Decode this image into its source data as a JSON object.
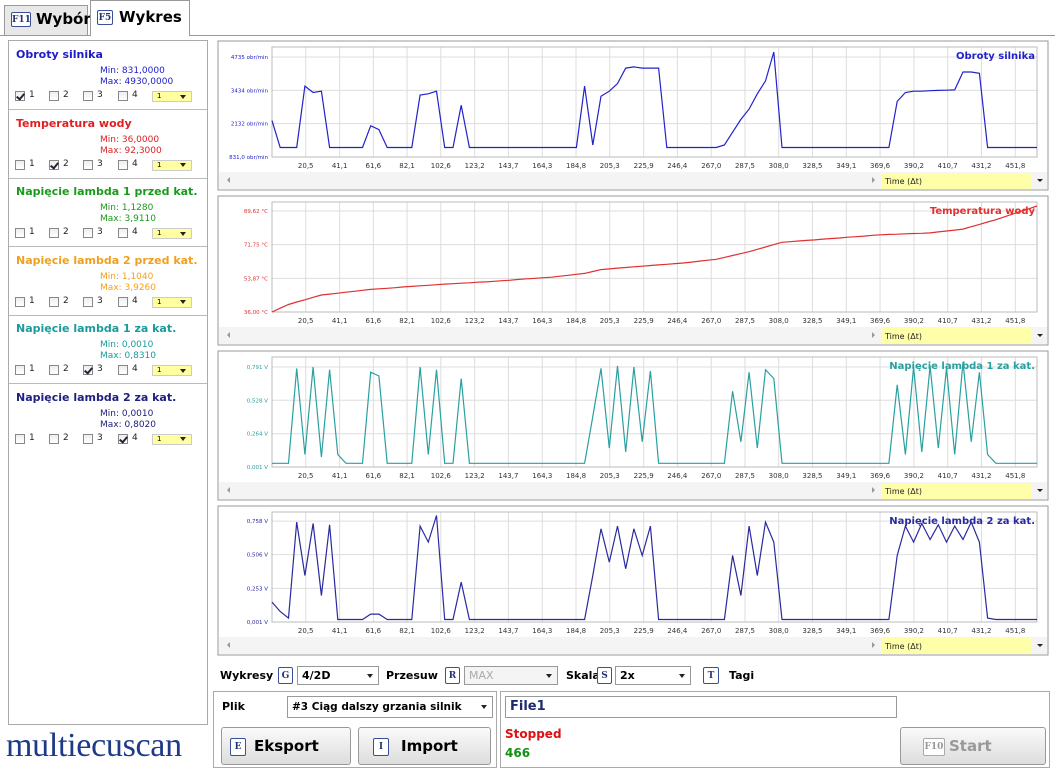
{
  "tabs": [
    {
      "key": "F11",
      "label": "Wybór",
      "active": false
    },
    {
      "key": "F5",
      "label": "Wykres",
      "active": true
    }
  ],
  "checkbox_labels": [
    "1",
    "2",
    "3",
    "4"
  ],
  "signals": [
    {
      "name": "Obroty silnika",
      "color": "#1c1cc8",
      "min": "Min: 831,0000",
      "max": "Max: 4930,0000",
      "checked": [
        true,
        false,
        false,
        false
      ],
      "selector": "1"
    },
    {
      "name": "Temperatura wody",
      "color": "#e02020",
      "min": "Min: 36,0000",
      "max": "Max: 92,3000",
      "checked": [
        false,
        true,
        false,
        false
      ],
      "selector": "1"
    },
    {
      "name": "Napięcie lambda 1 przed kat.",
      "color": "#1a9a1a",
      "min": "Min: 1,1280",
      "max": "Max: 3,9110",
      "checked": [
        false,
        false,
        false,
        false
      ],
      "selector": "1"
    },
    {
      "name": "Napięcie lambda 2 przed kat.",
      "color": "#f0a020",
      "min": "Min: 1,1040",
      "max": "Max: 3,9260",
      "checked": [
        false,
        false,
        false,
        false
      ],
      "selector": "1"
    },
    {
      "name": "Napięcie lambda 1 za kat.",
      "color": "#1a9a9a",
      "min": "Min: 0,0010",
      "max": "Max: 0,8310",
      "checked": [
        false,
        false,
        true,
        false
      ],
      "selector": "1"
    },
    {
      "name": "Napięcie lambda 2 za kat.",
      "color": "#202080",
      "min": "Min: 0,0010",
      "max": "Max: 0,8020",
      "checked": [
        false,
        false,
        false,
        true
      ],
      "selector": "1"
    }
  ],
  "logo": "multiecuscan",
  "time_axis": {
    "label": "Time (Δt)",
    "xlim": [
      0,
      465
    ],
    "xticks": [
      {
        "value": 20.5,
        "label": "20,5"
      },
      {
        "value": 41.1,
        "label": "41,1"
      },
      {
        "value": 61.6,
        "label": "61,6"
      },
      {
        "value": 82.1,
        "label": "82,1"
      },
      {
        "value": 102.6,
        "label": "102,6"
      },
      {
        "value": 123.2,
        "label": "123,2"
      },
      {
        "value": 143.7,
        "label": "143,7"
      },
      {
        "value": 164.3,
        "label": "164,3"
      },
      {
        "value": 184.8,
        "label": "184,8"
      },
      {
        "value": 205.3,
        "label": "205,3"
      },
      {
        "value": 225.9,
        "label": "225,9"
      },
      {
        "value": 246.4,
        "label": "246,4"
      },
      {
        "value": 267.0,
        "label": "267,0"
      },
      {
        "value": 287.5,
        "label": "287,5"
      },
      {
        "value": 308.0,
        "label": "308,0"
      },
      {
        "value": 328.5,
        "label": "328,5"
      },
      {
        "value": 349.1,
        "label": "349,1"
      },
      {
        "value": 369.6,
        "label": "369,6"
      },
      {
        "value": 390.2,
        "label": "390,2"
      },
      {
        "value": 410.7,
        "label": "410,7"
      },
      {
        "value": 431.2,
        "label": "431,2"
      },
      {
        "value": 451.8,
        "label": "451,8"
      }
    ],
    "x": [
      0,
      5,
      10,
      15,
      20,
      25,
      30,
      35,
      40,
      45,
      50,
      55,
      60,
      65,
      70,
      75,
      80,
      85,
      90,
      95,
      100,
      105,
      110,
      115,
      120,
      125,
      130,
      135,
      140,
      145,
      150,
      155,
      160,
      165,
      170,
      175,
      180,
      185,
      190,
      195,
      200,
      205,
      210,
      215,
      220,
      225,
      230,
      235,
      240,
      245,
      250,
      255,
      260,
      265,
      270,
      275,
      280,
      285,
      290,
      295,
      300,
      305,
      310,
      315,
      320,
      325,
      330,
      335,
      340,
      345,
      350,
      355,
      360,
      365,
      370,
      375,
      380,
      385,
      390,
      395,
      400,
      405,
      410,
      415,
      420,
      425,
      430,
      435,
      440,
      445,
      450,
      455,
      460,
      465
    ]
  },
  "chart_data": [
    {
      "type": "line",
      "title": "Obroty silnika",
      "color": "#2222cc",
      "ylim": [
        831,
        5125
      ],
      "yticks": [
        {
          "value": 831,
          "label": "831,0 obr/min"
        },
        {
          "value": 2132,
          "label": "2132 obr/min"
        },
        {
          "value": 3434,
          "label": "3434 obr/min"
        },
        {
          "value": 4735,
          "label": "4735 obr/min"
        }
      ],
      "values": [
        2250,
        1200,
        1200,
        1200,
        3600,
        3350,
        3400,
        1200,
        1200,
        1200,
        1200,
        1200,
        2050,
        1900,
        1200,
        1200,
        1200,
        1200,
        3250,
        3300,
        3400,
        1200,
        1200,
        2850,
        1200,
        1200,
        1200,
        1200,
        1200,
        1200,
        1200,
        1200,
        1200,
        1200,
        1200,
        1200,
        1200,
        1200,
        3600,
        1300,
        3200,
        3400,
        3700,
        4300,
        4350,
        4300,
        4300,
        4300,
        1200,
        1200,
        1200,
        1200,
        1200,
        1200,
        1200,
        1300,
        1800,
        2300,
        2700,
        3300,
        3800,
        4930,
        1200,
        1200,
        1200,
        1200,
        1200,
        1200,
        1200,
        1200,
        1200,
        1200,
        1200,
        1200,
        1200,
        1200,
        3000,
        3350,
        3400,
        3400,
        3420,
        3430,
        3440,
        3450,
        4150,
        4150,
        4100,
        1200,
        1200,
        1200,
        1200,
        1200,
        1200,
        1200
      ]
    },
    {
      "type": "line",
      "title": "Temperatura wody",
      "color": "#e03030",
      "ylim": [
        36,
        94.4
      ],
      "yticks": [
        {
          "value": 36,
          "label": "36,00 °C"
        },
        {
          "value": 53.87,
          "label": "53,87 °C"
        },
        {
          "value": 71.75,
          "label": "71,75 °C"
        },
        {
          "value": 89.62,
          "label": "89,62 °C"
        }
      ],
      "values": [
        36,
        38,
        40,
        41.3,
        42.5,
        43.8,
        45,
        45.5,
        46,
        46.5,
        47,
        47.5,
        48,
        48.3,
        48.6,
        48.9,
        49.3,
        49.6,
        49.9,
        50.2,
        50.5,
        50.8,
        51,
        51.3,
        51.5,
        51.8,
        52,
        52.3,
        52.6,
        52.9,
        53.3,
        53.6,
        53.9,
        54.2,
        54.5,
        55,
        55.5,
        56,
        56.5,
        57.5,
        58.5,
        58.9,
        59.3,
        59.6,
        60,
        60.3,
        60.7,
        61,
        61.3,
        61.7,
        62,
        62.5,
        63,
        63.5,
        64,
        65,
        66,
        67,
        68,
        69.3,
        70.5,
        71.8,
        73,
        73.3,
        73.7,
        74,
        74.3,
        74.7,
        75,
        75.3,
        75.7,
        76,
        76.3,
        76.7,
        77,
        77.2,
        77.3,
        77.5,
        77.7,
        77.8,
        78,
        78.5,
        79,
        79.5,
        80,
        81.3,
        82.5,
        83.8,
        85,
        86.5,
        87.9,
        89.4,
        90.8,
        92.3
      ]
    },
    {
      "type": "line",
      "title": "Napięcie lambda 1 za kat.",
      "color": "#2aa0a0",
      "ylim": [
        0.001,
        0.87
      ],
      "yticks": [
        {
          "value": 0.001,
          "label": "0,001 V"
        },
        {
          "value": 0.264,
          "label": "0,264 V"
        },
        {
          "value": 0.528,
          "label": "0,528 V"
        },
        {
          "value": 0.791,
          "label": "0,791 V"
        }
      ],
      "values": [
        0.03,
        0.03,
        0.03,
        0.78,
        0.1,
        0.79,
        0.08,
        0.77,
        0.1,
        0.03,
        0.03,
        0.03,
        0.75,
        0.72,
        0.03,
        0.03,
        0.03,
        0.03,
        0.79,
        0.1,
        0.77,
        0.03,
        0.03,
        0.7,
        0.03,
        0.03,
        0.03,
        0.03,
        0.03,
        0.03,
        0.03,
        0.03,
        0.03,
        0.03,
        0.03,
        0.03,
        0.03,
        0.03,
        0.03,
        0.4,
        0.78,
        0.15,
        0.8,
        0.12,
        0.79,
        0.2,
        0.76,
        0.03,
        0.03,
        0.03,
        0.03,
        0.03,
        0.03,
        0.03,
        0.03,
        0.03,
        0.6,
        0.2,
        0.75,
        0.15,
        0.77,
        0.7,
        0.03,
        0.03,
        0.03,
        0.03,
        0.03,
        0.03,
        0.03,
        0.03,
        0.03,
        0.03,
        0.03,
        0.03,
        0.03,
        0.03,
        0.65,
        0.1,
        0.79,
        0.12,
        0.8,
        0.15,
        0.78,
        0.1,
        0.83,
        0.2,
        0.75,
        0.1,
        0.03,
        0.03,
        0.03,
        0.03,
        0.03,
        0.03
      ]
    },
    {
      "type": "line",
      "title": "Napięcie lambda 2 za kat.",
      "color": "#2a2aa0",
      "ylim": [
        0.001,
        0.826
      ],
      "yticks": [
        {
          "value": 0.001,
          "label": "0,001 V"
        },
        {
          "value": 0.253,
          "label": "0,253 V"
        },
        {
          "value": 0.506,
          "label": "0,506 V"
        },
        {
          "value": 0.758,
          "label": "0,758 V"
        }
      ],
      "values": [
        0.15,
        0.08,
        0.03,
        0.75,
        0.35,
        0.74,
        0.2,
        0.73,
        0.02,
        0.02,
        0.02,
        0.02,
        0.06,
        0.06,
        0.02,
        0.02,
        0.02,
        0.02,
        0.72,
        0.6,
        0.8,
        0.02,
        0.02,
        0.3,
        0.02,
        0.02,
        0.02,
        0.02,
        0.02,
        0.02,
        0.02,
        0.02,
        0.02,
        0.02,
        0.02,
        0.02,
        0.02,
        0.02,
        0.02,
        0.35,
        0.7,
        0.45,
        0.72,
        0.4,
        0.7,
        0.5,
        0.72,
        0.02,
        0.02,
        0.02,
        0.02,
        0.02,
        0.02,
        0.02,
        0.02,
        0.02,
        0.5,
        0.2,
        0.72,
        0.35,
        0.75,
        0.6,
        0.02,
        0.02,
        0.02,
        0.02,
        0.02,
        0.02,
        0.02,
        0.02,
        0.02,
        0.02,
        0.02,
        0.02,
        0.02,
        0.02,
        0.5,
        0.72,
        0.6,
        0.74,
        0.62,
        0.73,
        0.6,
        0.72,
        0.62,
        0.75,
        0.6,
        0.03,
        0.02,
        0.02,
        0.02,
        0.02,
        0.02,
        0.02
      ]
    }
  ],
  "toolbar": {
    "charts_label": "Wykresy",
    "charts_key": "G",
    "charts_value": "4/2D",
    "shift_label": "Przesuw",
    "shift_key": "R",
    "shift_value": "MAX",
    "scale_label": "Skala",
    "scale_key": "S",
    "scale_value": "2x",
    "tags_key": "T",
    "tags_label": "Tagi"
  },
  "file_panel": {
    "label": "Plik",
    "file": "#3 Ciąg dalszy grzania silnik",
    "export_key": "E",
    "export_label": "Eksport",
    "import_key": "I",
    "import_label": "Import"
  },
  "status_panel": {
    "name": "File1",
    "status": "Stopped",
    "count": "466",
    "start_key": "F10",
    "start_label": "Start"
  }
}
